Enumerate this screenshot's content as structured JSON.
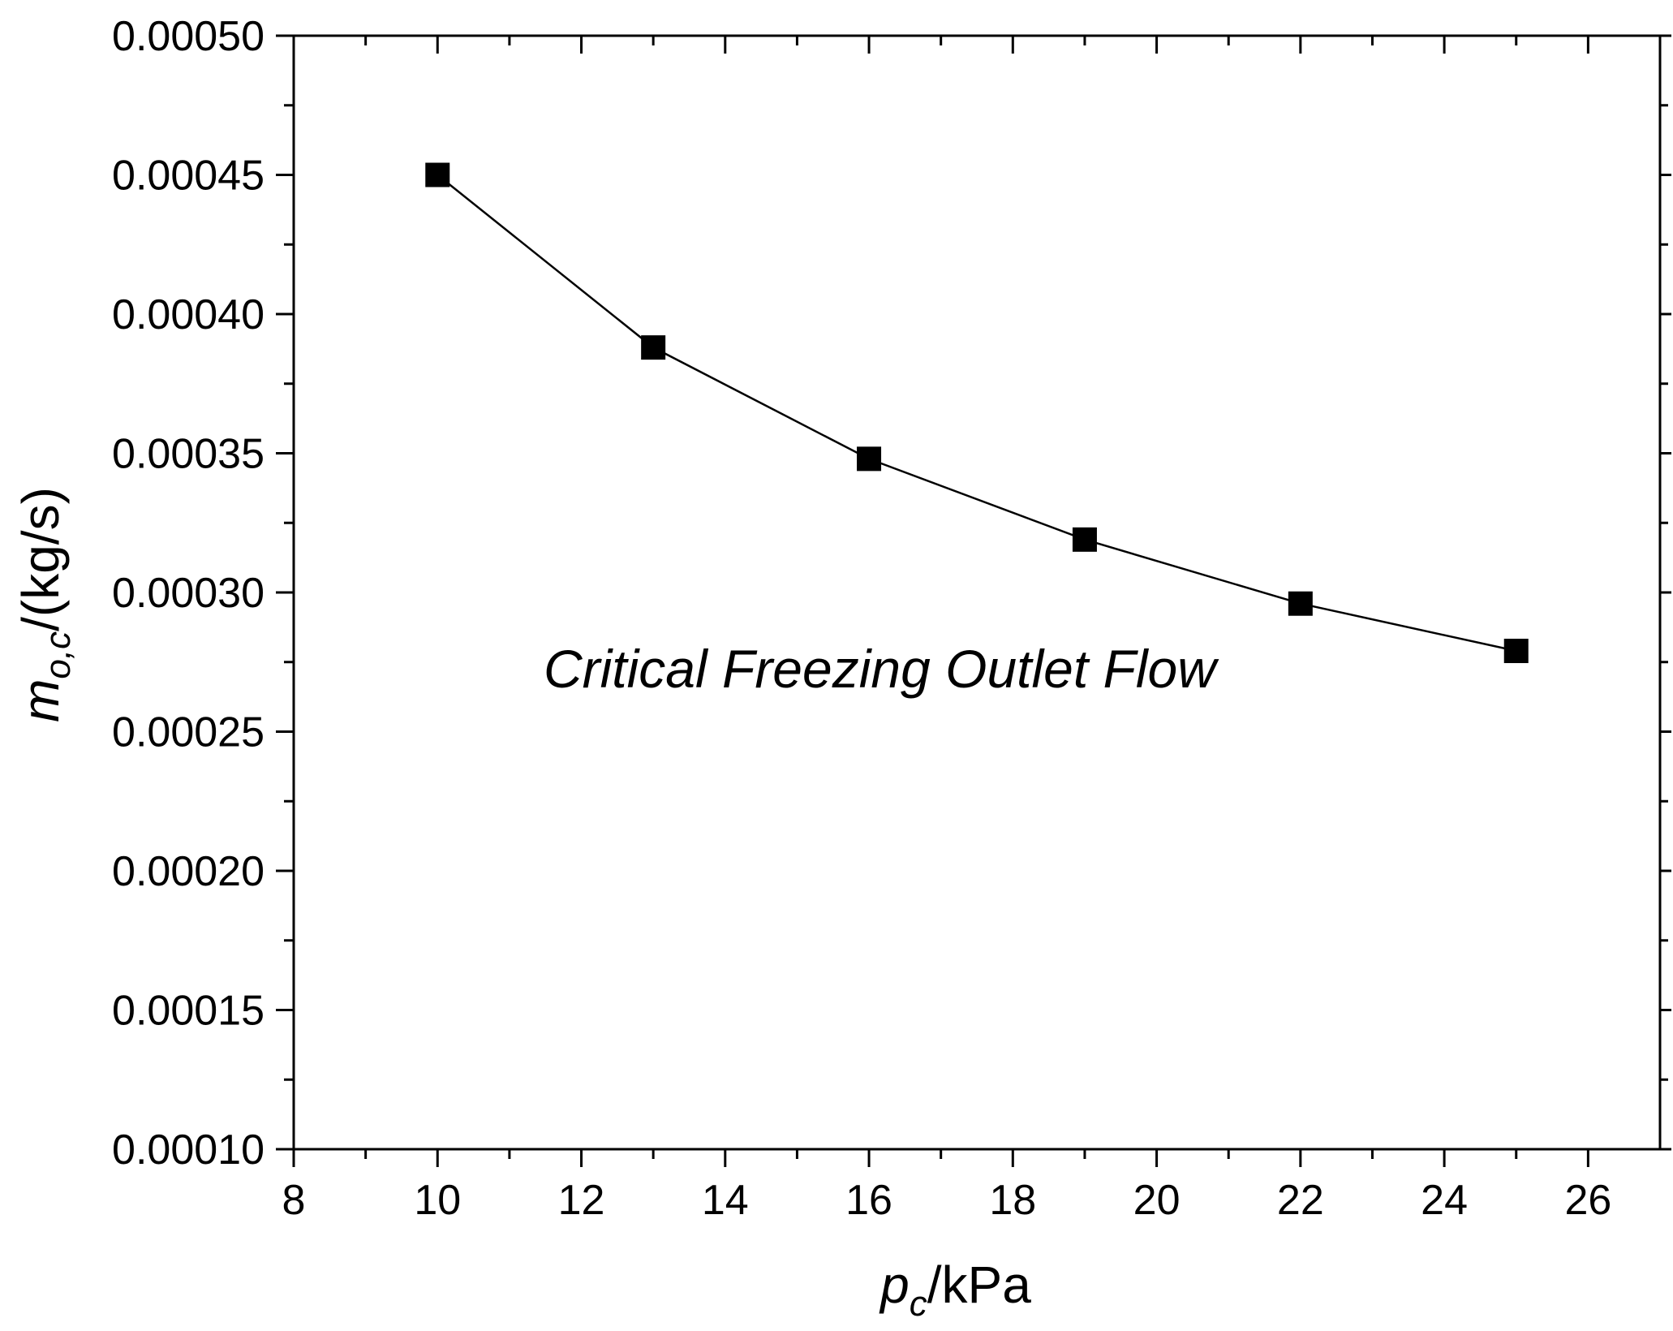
{
  "chart_data": {
    "type": "line",
    "title": "",
    "annotation": "Critical Freezing Outlet Flow",
    "xlabel": {
      "main": "p",
      "sub": "c",
      "unit": "/kPa"
    },
    "ylabel": {
      "main": "m",
      "sub": "o,c",
      "unit": "/(kg/s)"
    },
    "xlim": [
      8,
      27
    ],
    "ylim": [
      0.0001,
      0.0005
    ],
    "x_ticks": [
      8,
      10,
      12,
      14,
      16,
      18,
      20,
      22,
      24,
      26
    ],
    "x_tick_labels": [
      "8",
      "10",
      "12",
      "14",
      "16",
      "18",
      "20",
      "22",
      "24",
      "26"
    ],
    "y_ticks": [
      0.0001,
      0.00015,
      0.0002,
      0.00025,
      0.0003,
      0.00035,
      0.0004,
      0.00045,
      0.0005
    ],
    "y_tick_labels": [
      "0.00010",
      "0.00015",
      "0.00020",
      "0.00025",
      "0.00030",
      "0.00035",
      "0.00040",
      "0.00045",
      "0.00050"
    ],
    "grid": false,
    "series": [
      {
        "name": "Critical Freezing Outlet Flow",
        "marker": "square",
        "color": "#000000",
        "x": [
          10,
          13,
          16,
          19,
          22,
          25
        ],
        "y": [
          0.00045,
          0.000388,
          0.000348,
          0.000319,
          0.000296,
          0.000279
        ]
      }
    ]
  }
}
